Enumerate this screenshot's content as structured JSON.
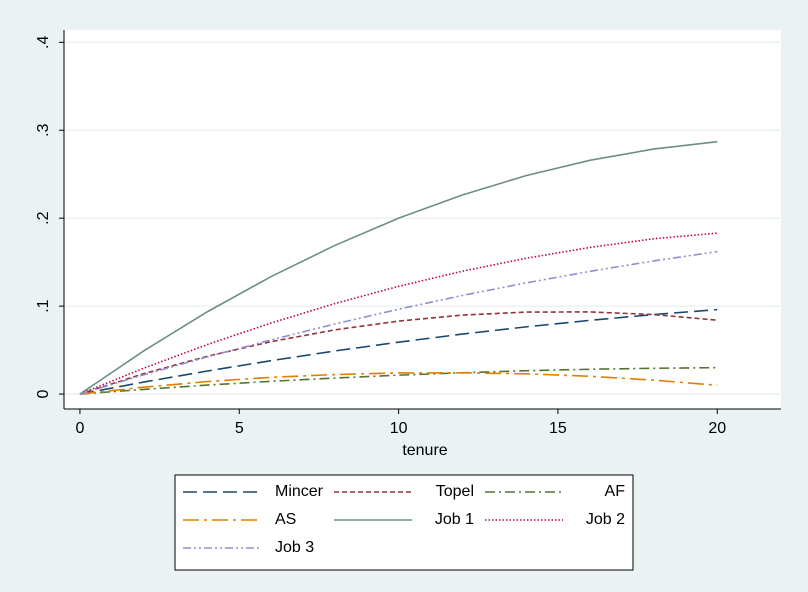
{
  "chart_data": {
    "type": "line",
    "x_label": "tenure",
    "x": [
      0,
      2,
      4,
      6,
      8,
      10,
      12,
      14,
      16,
      18,
      20
    ],
    "series": [
      {
        "name": "Mincer",
        "color": "#1a476f",
        "values": [
          0,
          0.0136,
          0.0262,
          0.038,
          0.049,
          0.059,
          0.0682,
          0.0764,
          0.0838,
          0.0904,
          0.096
        ]
      },
      {
        "name": "Topel",
        "color": "#90353b",
        "values": [
          0,
          0.0232,
          0.043,
          0.0596,
          0.073,
          0.083,
          0.0898,
          0.0932,
          0.0934,
          0.0904,
          0.084
        ]
      },
      {
        "name": "AF",
        "color": "#55752f",
        "values": [
          0,
          0.0053,
          0.0102,
          0.0145,
          0.0182,
          0.0215,
          0.0242,
          0.0265,
          0.0282,
          0.0293,
          0.03
        ]
      },
      {
        "name": "AS",
        "color": "#e37e00",
        "values": [
          0,
          0.0078,
          0.0142,
          0.019,
          0.0222,
          0.024,
          0.0242,
          0.023,
          0.0202,
          0.0158,
          0.01
        ]
      },
      {
        "name": "Job 1",
        "color": "#6e8e84",
        "values": [
          0,
          0.049,
          0.0936,
          0.1336,
          0.169,
          0.2,
          0.2264,
          0.2484,
          0.2658,
          0.2786,
          0.287
        ]
      },
      {
        "name": "Job 2",
        "color": "#c10534",
        "values": [
          0,
          0.0294,
          0.0563,
          0.0808,
          0.1029,
          0.1225,
          0.1397,
          0.1544,
          0.1667,
          0.1766,
          0.183
        ]
      },
      {
        "name": "Job 3",
        "color": "#938dd2",
        "values": [
          0,
          0.0218,
          0.0423,
          0.0616,
          0.0797,
          0.0965,
          0.1121,
          0.1264,
          0.1395,
          0.1514,
          0.162
        ]
      }
    ],
    "xlim": [
      -0.5,
      22
    ],
    "xticks": [
      0,
      5,
      10,
      15,
      20
    ],
    "ylim": [
      -0.017,
      0.414
    ],
    "yticks": [
      0,
      {
        "value": 0.1,
        "label": ".1"
      },
      {
        "value": 0.2,
        "label": ".2"
      },
      {
        "value": 0.3,
        "label": ".3"
      },
      {
        "value": 0.4,
        "label": ".4"
      }
    ],
    "grid": true
  }
}
